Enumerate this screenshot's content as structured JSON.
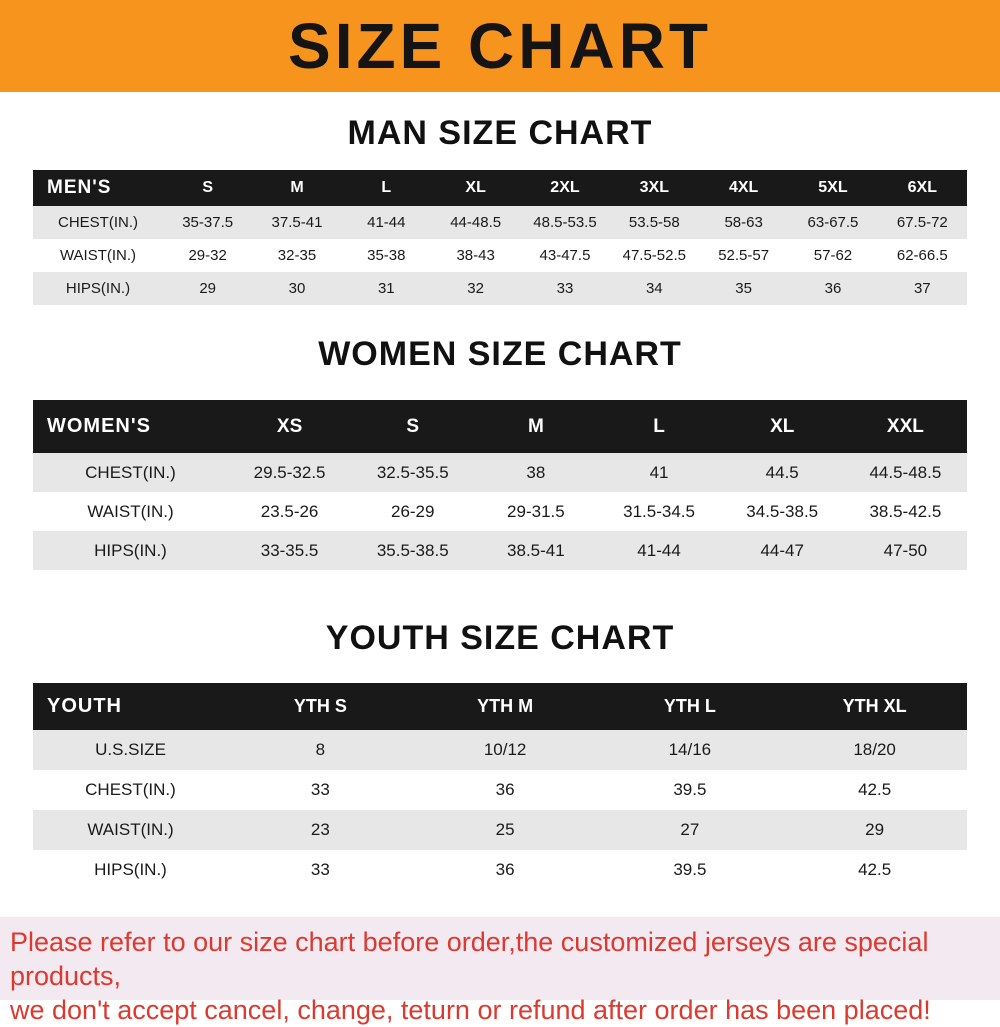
{
  "banner": {
    "title": "SIZE CHART",
    "bg_color": "#F7941E"
  },
  "footer": {
    "line1": "Please refer to our size chart before order,the customized jerseys are special products,",
    "line2": "we don't accept cancel, change, teturn or refund after order has been placed!"
  },
  "colors": {
    "banner_orange": "#F7941E",
    "table_header_black": "#191919",
    "row_stripe_gray": "#E7E7E7",
    "footer_bg": "#F2E9F1",
    "footer_red": "#DC3A30"
  },
  "chart_data": [
    {
      "type": "table",
      "title": "MAN SIZE CHART",
      "corner_label": "MEN'S",
      "columns": [
        "S",
        "M",
        "L",
        "XL",
        "2XL",
        "3XL",
        "4XL",
        "5XL",
        "6XL"
      ],
      "rows": [
        {
          "label": "CHEST(IN.)",
          "values": [
            "35-37.5",
            "37.5-41",
            "41-44",
            "44-48.5",
            "48.5-53.5",
            "53.5-58",
            "58-63",
            "63-67.5",
            "67.5-72"
          ]
        },
        {
          "label": "WAIST(IN.)",
          "values": [
            "29-32",
            "32-35",
            "35-38",
            "38-43",
            "43-47.5",
            "47.5-52.5",
            "52.5-57",
            "57-62",
            "62-66.5"
          ]
        },
        {
          "label": "HIPS(IN.)",
          "values": [
            "29",
            "30",
            "31",
            "32",
            "33",
            "34",
            "35",
            "36",
            "37"
          ]
        }
      ]
    },
    {
      "type": "table",
      "title": "WOMEN SIZE CHART",
      "corner_label": "WOMEN'S",
      "columns": [
        "XS",
        "S",
        "M",
        "L",
        "XL",
        "XXL"
      ],
      "rows": [
        {
          "label": "CHEST(IN.)",
          "values": [
            "29.5-32.5",
            "32.5-35.5",
            "38",
            "41",
            "44.5",
            "44.5-48.5"
          ]
        },
        {
          "label": "WAIST(IN.)",
          "values": [
            "23.5-26",
            "26-29",
            "29-31.5",
            "31.5-34.5",
            "34.5-38.5",
            "38.5-42.5"
          ]
        },
        {
          "label": "HIPS(IN.)",
          "values": [
            "33-35.5",
            "35.5-38.5",
            "38.5-41",
            "41-44",
            "44-47",
            "47-50"
          ]
        }
      ]
    },
    {
      "type": "table",
      "title": "YOUTH SIZE CHART",
      "corner_label": "YOUTH",
      "columns": [
        "YTH S",
        "YTH M",
        "YTH L",
        "YTH XL"
      ],
      "rows": [
        {
          "label": "U.S.SIZE",
          "values": [
            "8",
            "10/12",
            "14/16",
            "18/20"
          ]
        },
        {
          "label": "CHEST(IN.)",
          "values": [
            "33",
            "36",
            "39.5",
            "42.5"
          ]
        },
        {
          "label": "WAIST(IN.)",
          "values": [
            "23",
            "25",
            "27",
            "29"
          ]
        },
        {
          "label": "HIPS(IN.)",
          "values": [
            "33",
            "36",
            "39.5",
            "42.5"
          ]
        }
      ]
    }
  ]
}
